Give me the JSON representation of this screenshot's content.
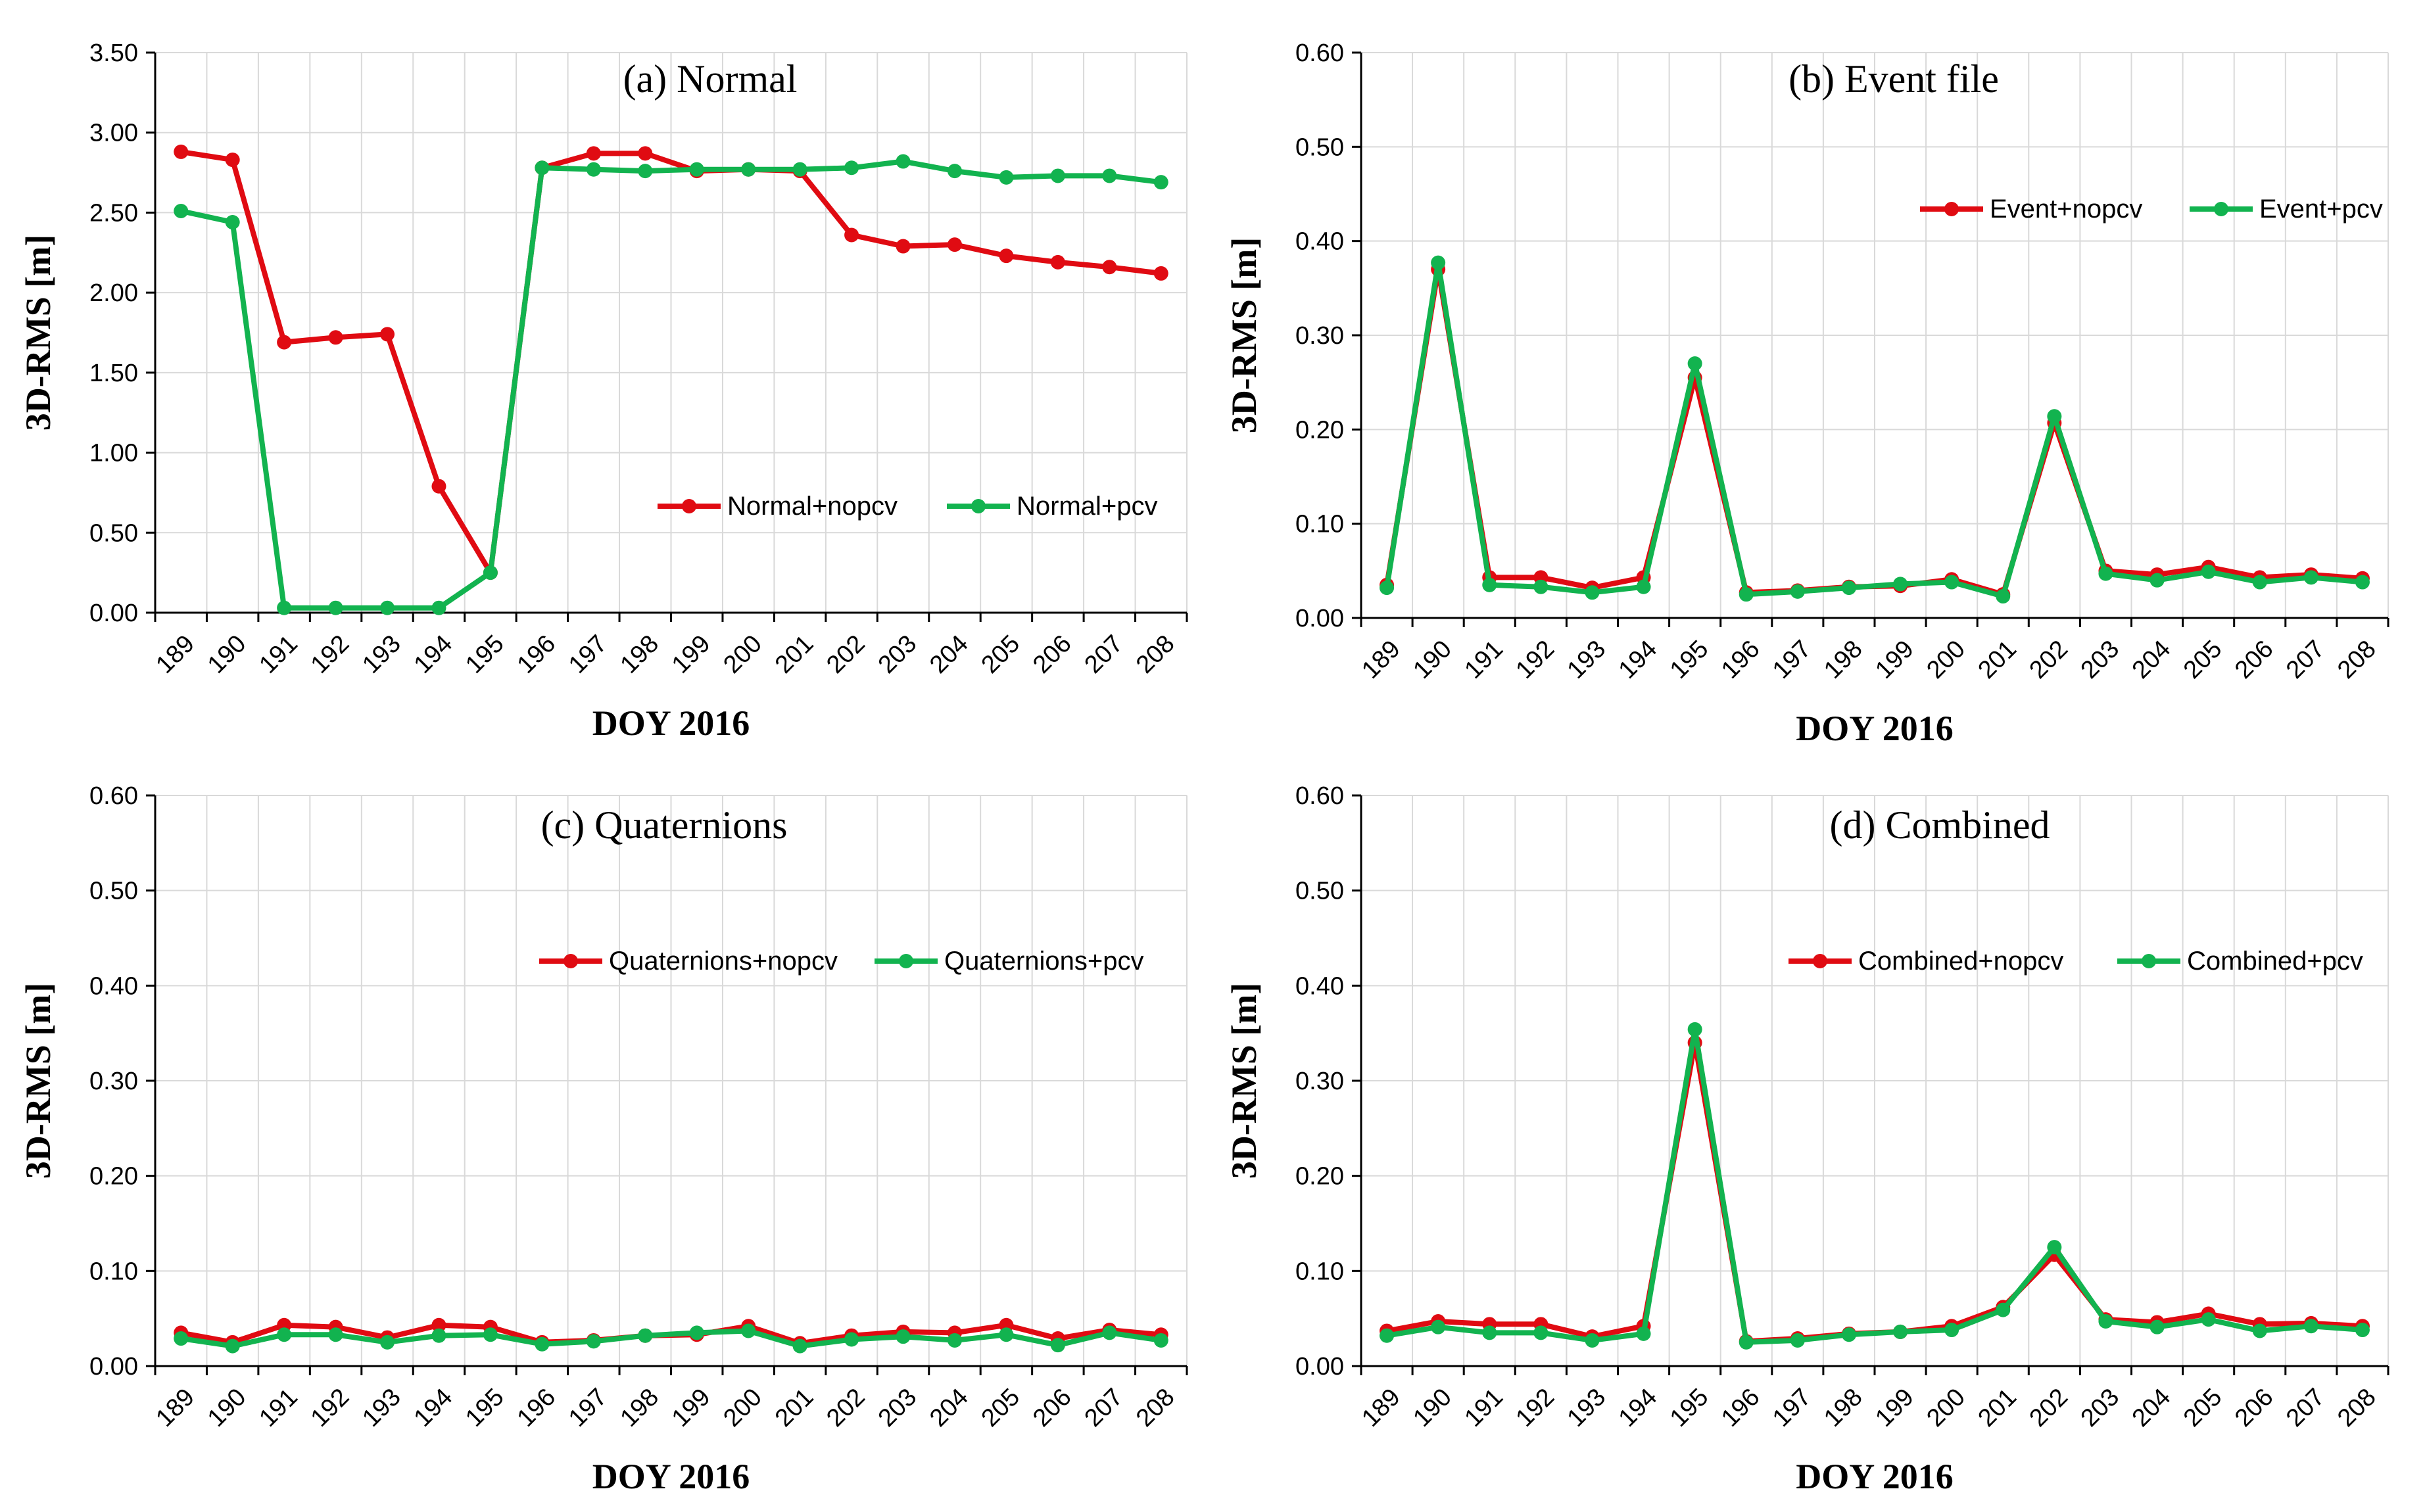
{
  "figure": {
    "colors": {
      "nopcv": "#e00b12",
      "pcv": "#12b34f",
      "grid": "#d9d9d9",
      "axis": "#000000",
      "text": "#000000"
    }
  },
  "chart_data": [
    {
      "type": "line",
      "title": "(a) Normal",
      "xlabel": "DOY 2016",
      "ylabel": "3D-RMS [m]",
      "ylim": [
        0,
        3.5
      ],
      "yticks": [
        "0.00",
        "0.50",
        "1.00",
        "1.50",
        "2.00",
        "2.50",
        "3.00",
        "3.50"
      ],
      "categories": [
        "189",
        "190",
        "191",
        "192",
        "193",
        "194",
        "195",
        "196",
        "197",
        "198",
        "199",
        "200",
        "201",
        "202",
        "203",
        "204",
        "205",
        "206",
        "207",
        "208"
      ],
      "grid": true,
      "legend_position": "center-right",
      "series": [
        {
          "name": "Normal+nopcv",
          "color_key": "nopcv",
          "values": [
            2.88,
            2.83,
            1.69,
            1.72,
            1.74,
            0.79,
            0.25,
            2.78,
            2.87,
            2.87,
            2.76,
            2.77,
            2.76,
            2.36,
            2.29,
            2.3,
            2.23,
            2.19,
            2.16,
            2.12
          ]
        },
        {
          "name": "Normal+pcv",
          "color_key": "pcv",
          "values": [
            2.51,
            2.44,
            0.03,
            0.03,
            0.03,
            0.03,
            0.25,
            2.78,
            2.77,
            2.76,
            2.77,
            2.77,
            2.77,
            2.78,
            2.82,
            2.76,
            2.72,
            2.73,
            2.73,
            2.69
          ]
        }
      ]
    },
    {
      "type": "line",
      "title": "(b) Event file",
      "xlabel": "DOY 2016",
      "ylabel": "3D-RMS [m]",
      "ylim": [
        0,
        0.6
      ],
      "yticks": [
        "0.00",
        "0.10",
        "0.20",
        "0.30",
        "0.40",
        "0.50",
        "0.60"
      ],
      "categories": [
        "189",
        "190",
        "191",
        "192",
        "193",
        "194",
        "195",
        "196",
        "197",
        "198",
        "199",
        "200",
        "201",
        "202",
        "203",
        "204",
        "205",
        "206",
        "207",
        "208"
      ],
      "grid": true,
      "legend_position": "top-right",
      "series": [
        {
          "name": "Event+nopcv",
          "color_key": "nopcv",
          "values": [
            0.035,
            0.37,
            0.043,
            0.043,
            0.032,
            0.043,
            0.255,
            0.027,
            0.029,
            0.033,
            0.034,
            0.041,
            0.025,
            0.207,
            0.05,
            0.046,
            0.054,
            0.043,
            0.046,
            0.042
          ]
        },
        {
          "name": "Event+pcv",
          "color_key": "pcv",
          "values": [
            0.032,
            0.377,
            0.035,
            0.033,
            0.027,
            0.033,
            0.27,
            0.025,
            0.028,
            0.032,
            0.036,
            0.038,
            0.023,
            0.214,
            0.047,
            0.04,
            0.049,
            0.038,
            0.043,
            0.038
          ]
        }
      ]
    },
    {
      "type": "line",
      "title": "(c) Quaternions",
      "xlabel": "DOY 2016",
      "ylabel": "3D-RMS [m]",
      "ylim": [
        0,
        0.6
      ],
      "yticks": [
        "0.00",
        "0.10",
        "0.20",
        "0.30",
        "0.40",
        "0.50",
        "0.60"
      ],
      "categories": [
        "189",
        "190",
        "191",
        "192",
        "193",
        "194",
        "195",
        "196",
        "197",
        "198",
        "199",
        "200",
        "201",
        "202",
        "203",
        "204",
        "205",
        "206",
        "207",
        "208"
      ],
      "grid": true,
      "legend_position": "top-right",
      "series": [
        {
          "name": "Quaternions+nopcv",
          "color_key": "nopcv",
          "values": [
            0.035,
            0.025,
            0.043,
            0.041,
            0.03,
            0.043,
            0.041,
            0.025,
            0.027,
            0.032,
            0.033,
            0.042,
            0.024,
            0.032,
            0.036,
            0.035,
            0.043,
            0.029,
            0.038,
            0.033
          ]
        },
        {
          "name": "Quaternions+pcv",
          "color_key": "pcv",
          "values": [
            0.029,
            0.021,
            0.033,
            0.033,
            0.025,
            0.032,
            0.033,
            0.023,
            0.026,
            0.032,
            0.035,
            0.037,
            0.021,
            0.028,
            0.031,
            0.027,
            0.033,
            0.022,
            0.035,
            0.027
          ]
        }
      ]
    },
    {
      "type": "line",
      "title": "(d) Combined",
      "xlabel": "DOY 2016",
      "ylabel": "3D-RMS [m]",
      "ylim": [
        0,
        0.6
      ],
      "yticks": [
        "0.00",
        "0.10",
        "0.20",
        "0.30",
        "0.40",
        "0.50",
        "0.60"
      ],
      "categories": [
        "189",
        "190",
        "191",
        "192",
        "193",
        "194",
        "195",
        "196",
        "197",
        "198",
        "199",
        "200",
        "201",
        "202",
        "203",
        "204",
        "205",
        "206",
        "207",
        "208"
      ],
      "grid": true,
      "legend_position": "top-right",
      "series": [
        {
          "name": "Combined+nopcv",
          "color_key": "nopcv",
          "values": [
            0.037,
            0.047,
            0.044,
            0.044,
            0.031,
            0.042,
            0.34,
            0.026,
            0.029,
            0.034,
            0.036,
            0.042,
            0.062,
            0.117,
            0.049,
            0.046,
            0.055,
            0.044,
            0.045,
            0.042
          ]
        },
        {
          "name": "Combined+pcv",
          "color_key": "pcv",
          "values": [
            0.032,
            0.041,
            0.035,
            0.035,
            0.027,
            0.034,
            0.354,
            0.025,
            0.027,
            0.033,
            0.036,
            0.038,
            0.059,
            0.125,
            0.047,
            0.041,
            0.049,
            0.037,
            0.042,
            0.038
          ]
        }
      ]
    }
  ]
}
